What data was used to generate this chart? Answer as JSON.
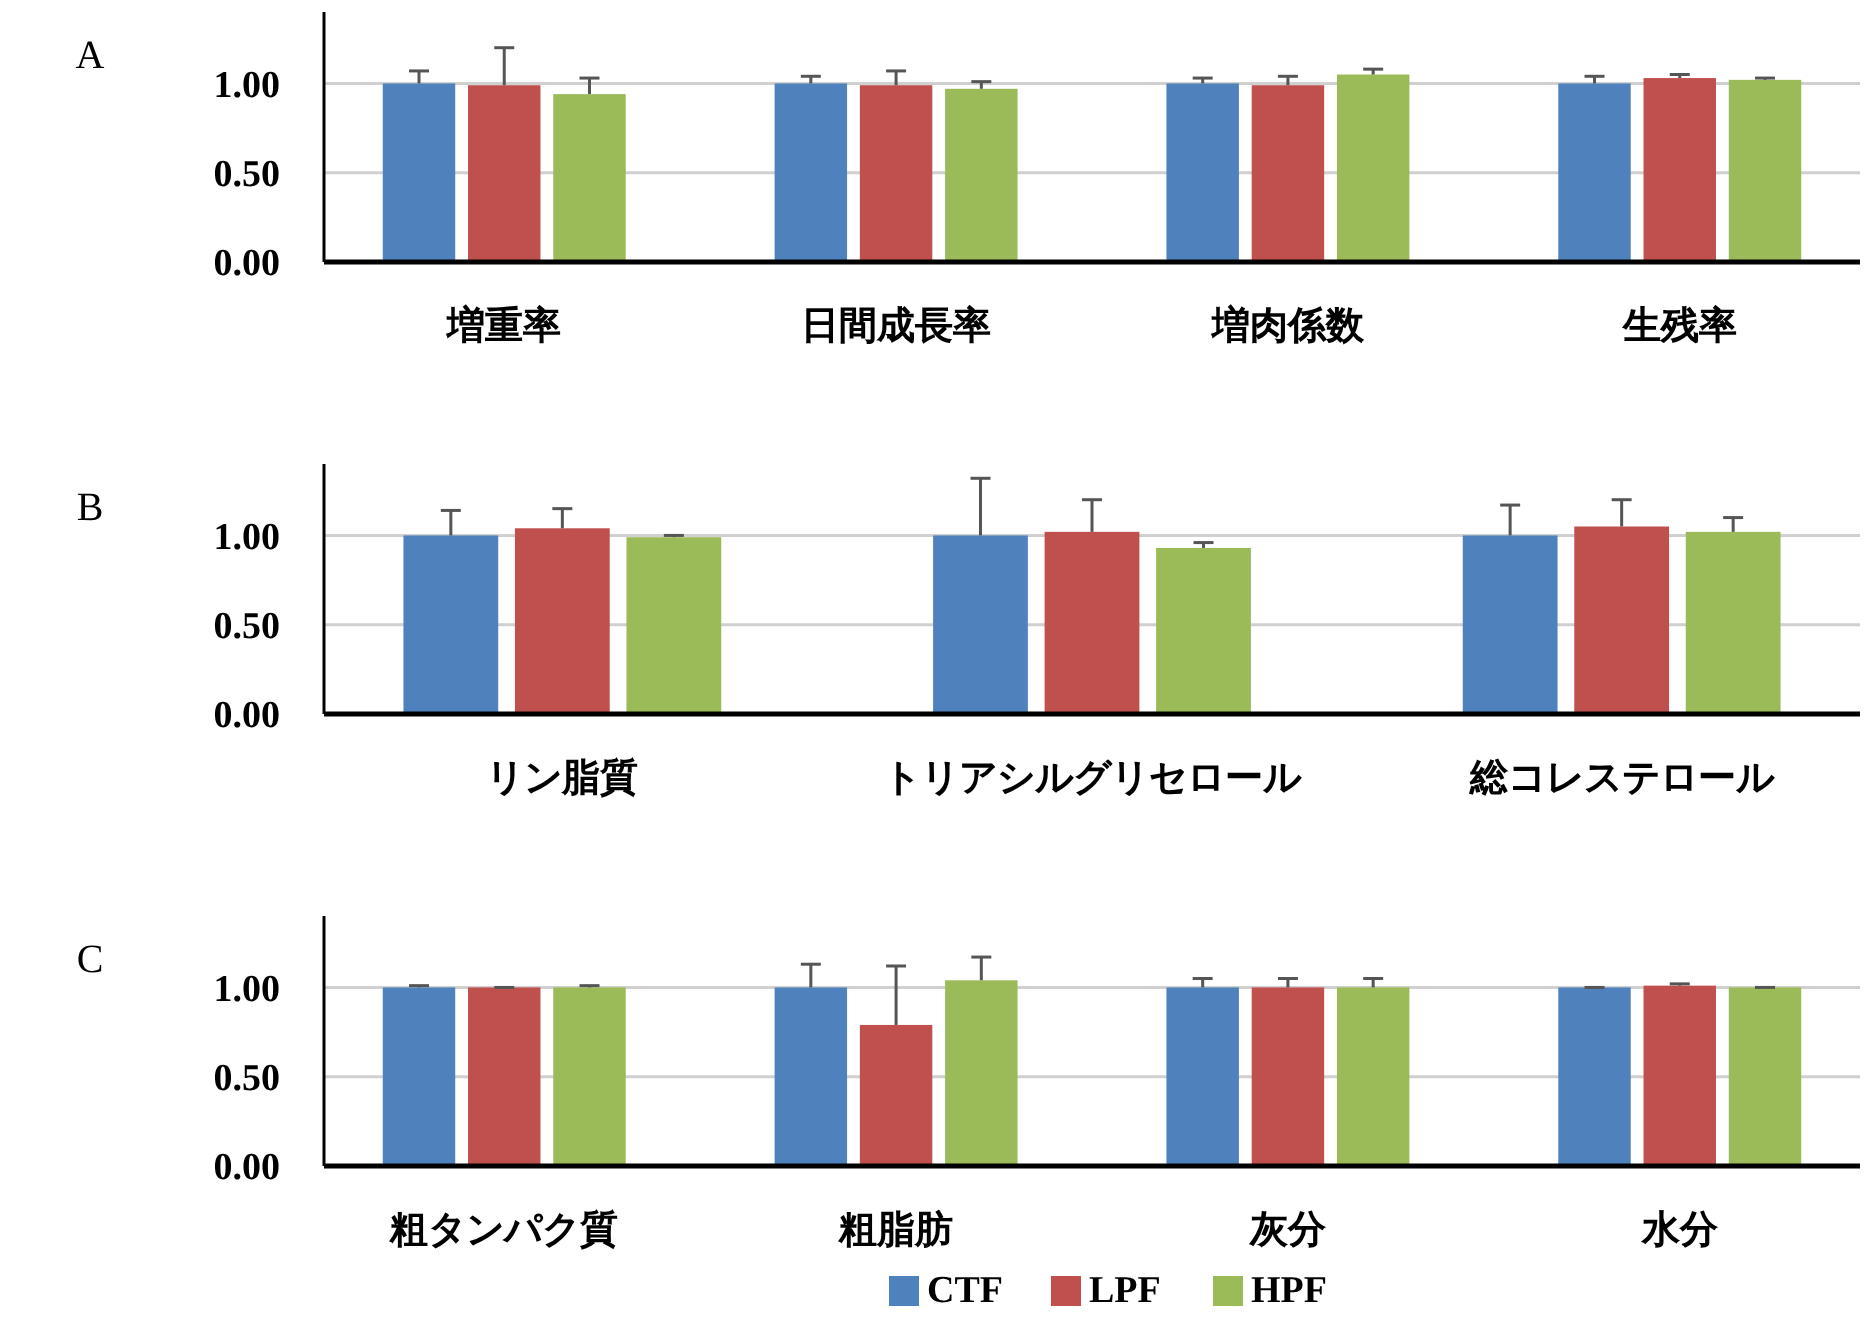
{
  "chart_data": [
    {
      "type": "bar",
      "title": "A",
      "categories": [
        "増重率",
        "日間成長率",
        "増肉係数",
        "生残率"
      ],
      "ylim": [
        0,
        1.4
      ],
      "yticks": [
        {
          "value": 0,
          "label": "0.00"
        },
        {
          "value": 0.5,
          "label": "0.50"
        },
        {
          "value": 1,
          "label": "1.00"
        }
      ],
      "grid": "y",
      "legend": false,
      "series": [
        {
          "color": "#4f81bd",
          "values": [
            1.0,
            1.0,
            1.0,
            1.0
          ],
          "errors": [
            [
              1.0,
              1.07
            ],
            [
              1.0,
              1.04
            ],
            [
              1.0,
              1.03
            ],
            [
              1.0,
              1.04
            ]
          ]
        },
        {
          "color": "#c0504d",
          "values": [
            0.99,
            0.99,
            0.99,
            1.03
          ],
          "errors": [
            [
              0.99,
              1.2
            ],
            [
              0.99,
              1.07
            ],
            [
              0.99,
              1.04
            ],
            [
              1.03,
              1.05
            ]
          ]
        },
        {
          "color": "#9bbb59",
          "values": [
            0.94,
            0.97,
            1.05,
            1.02
          ],
          "errors": [
            [
              0.94,
              1.03
            ],
            [
              0.97,
              1.01
            ],
            [
              1.05,
              1.08
            ],
            [
              1.02,
              1.03
            ]
          ]
        }
      ]
    },
    {
      "type": "bar",
      "title": "B",
      "categories": [
        "リン脂質",
        "トリアシルグリセロール",
        "総コレステロール"
      ],
      "ylim": [
        0,
        1.4
      ],
      "yticks": [
        {
          "value": 0,
          "label": "0.00"
        },
        {
          "value": 0.5,
          "label": "0.50"
        },
        {
          "value": 1,
          "label": "1.00"
        }
      ],
      "grid": "y",
      "legend": false,
      "series": [
        {
          "color": "#4f81bd",
          "values": [
            1.0,
            1.0,
            1.0
          ],
          "errors": [
            [
              1.0,
              1.14
            ],
            [
              1.0,
              1.32
            ],
            [
              1.0,
              1.17
            ]
          ]
        },
        {
          "color": "#c0504d",
          "values": [
            1.04,
            1.02,
            1.05
          ],
          "errors": [
            [
              1.04,
              1.15
            ],
            [
              1.02,
              1.2
            ],
            [
              1.05,
              1.2
            ]
          ]
        },
        {
          "color": "#9bbb59",
          "values": [
            0.99,
            0.93,
            1.02
          ],
          "errors": [
            [
              0.99,
              1.0
            ],
            [
              0.93,
              0.96
            ],
            [
              1.02,
              1.1
            ]
          ]
        }
      ]
    },
    {
      "type": "bar",
      "title": "C",
      "categories": [
        "粗タンパク質",
        "粗脂肪",
        "灰分",
        "水分"
      ],
      "ylim": [
        0,
        1.4
      ],
      "yticks": [
        {
          "value": 0,
          "label": "0.00"
        },
        {
          "value": 0.5,
          "label": "0.50"
        },
        {
          "value": 1,
          "label": "1.00"
        }
      ],
      "grid": "y",
      "legend": "bottom",
      "series": [
        {
          "name": "CTF",
          "color": "#4f81bd",
          "values": [
            1.0,
            1.0,
            1.0,
            1.0
          ],
          "errors": [
            [
              1.0,
              1.01
            ],
            [
              1.0,
              1.13
            ],
            [
              1.0,
              1.05
            ],
            [
              1.0,
              1.0
            ]
          ]
        },
        {
          "name": "LPF",
          "color": "#c0504d",
          "values": [
            1.0,
            0.79,
            1.0,
            1.01
          ],
          "errors": [
            [
              1.0,
              1.0
            ],
            [
              0.79,
              1.12
            ],
            [
              1.0,
              1.05
            ],
            [
              1.01,
              1.02
            ]
          ]
        },
        {
          "name": "HPF",
          "color": "#9bbb59",
          "values": [
            1.0,
            1.04,
            1.0,
            1.0
          ],
          "errors": [
            [
              1.0,
              1.01
            ],
            [
              1.04,
              1.17
            ],
            [
              1.0,
              1.05
            ],
            [
              1.0,
              1.0
            ]
          ]
        }
      ]
    }
  ]
}
